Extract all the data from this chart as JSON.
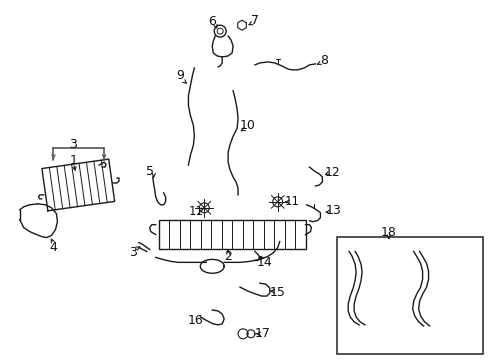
{
  "bg_color": "#ffffff",
  "fig_width": 4.89,
  "fig_height": 3.6,
  "dpi": 100,
  "line_color": "#1a1a1a",
  "lw": 1.0
}
